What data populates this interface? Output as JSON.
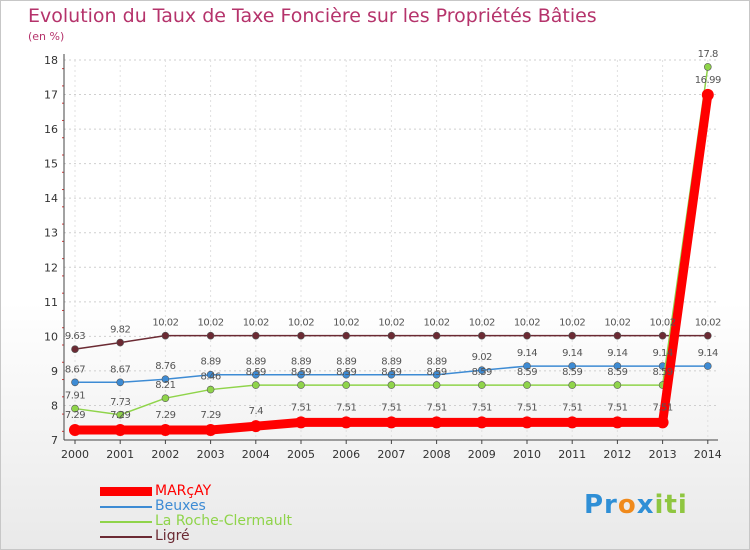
{
  "chart_data": {
    "type": "line",
    "title": "Evolution du Taux de Taxe Foncière sur les Propriétés Bâties",
    "ylabel": "(en %)",
    "xlabel": "",
    "x": [
      "2000",
      "2001",
      "2002",
      "2003",
      "2004",
      "2005",
      "2006",
      "2007",
      "2008",
      "2009",
      "2010",
      "2011",
      "2012",
      "2013",
      "2014"
    ],
    "ylim": [
      7,
      18
    ],
    "yticks": [
      "7",
      "8",
      "9",
      "10",
      "11",
      "12",
      "13",
      "14",
      "15",
      "16",
      "17",
      "18"
    ],
    "series": [
      {
        "name": "Ligré",
        "color": "#6b2a33",
        "values": [
          9.63,
          9.82,
          10.02,
          10.02,
          10.02,
          10.02,
          10.02,
          10.02,
          10.02,
          10.02,
          10.02,
          10.02,
          10.02,
          10.02,
          10.02
        ],
        "labels": [
          "9.63",
          "9.82",
          "10.02",
          "10.02",
          "10.02",
          "10.02",
          "10.02",
          "10.02",
          "10.02",
          "10.02",
          "10.02",
          "10.02",
          "10.02",
          "10.02",
          "10.02"
        ]
      },
      {
        "name": "Beuxes",
        "color": "#3d8bd4",
        "values": [
          8.67,
          8.67,
          8.76,
          8.89,
          8.89,
          8.89,
          8.89,
          8.89,
          8.89,
          9.02,
          9.14,
          9.14,
          9.14,
          9.14,
          9.14
        ],
        "labels": [
          "8.67",
          "8.67",
          "8.76",
          "8.89",
          "8.89",
          "8.89",
          "8.89",
          "8.89",
          "8.89",
          "9.02",
          "9.14",
          "9.14",
          "9.14",
          "9.14",
          "9.14"
        ]
      },
      {
        "name": "La Roche-Clermault",
        "color": "#8fd44a",
        "values": [
          7.91,
          7.73,
          8.21,
          8.46,
          8.59,
          8.59,
          8.59,
          8.59,
          8.59,
          8.59,
          8.59,
          8.59,
          8.59,
          8.59,
          17.8
        ],
        "labels": [
          "7.91",
          "7.73",
          "8.21",
          "8.46",
          "8.59",
          "8.59",
          "8.59",
          "8.59",
          "8.59",
          "8.59",
          "8.59",
          "8.59",
          "8.59",
          "8.59",
          "17.8"
        ]
      },
      {
        "name": "MARçAY",
        "color": "#ff0000",
        "values": [
          7.29,
          7.29,
          7.29,
          7.29,
          7.4,
          7.51,
          7.51,
          7.51,
          7.51,
          7.51,
          7.51,
          7.51,
          7.51,
          7.51,
          16.99
        ],
        "labels": [
          "7.29",
          "7.29",
          "7.29",
          "7.29",
          "7.4",
          "7.51",
          "7.51",
          "7.51",
          "7.51",
          "7.51",
          "7.51",
          "7.51",
          "7.51",
          "7.51",
          "16.99"
        ]
      }
    ],
    "legend": [
      {
        "name": "MARçAY",
        "color": "#ff0000"
      },
      {
        "name": "Beuxes",
        "color": "#3d8bd4"
      },
      {
        "name": "La Roche-Clermault",
        "color": "#8fd44a"
      },
      {
        "name": "Ligré",
        "color": "#6b2a33"
      }
    ]
  },
  "logo": {
    "parts": [
      "Pr",
      "o",
      "x",
      "iti"
    ],
    "colors": [
      "#2f8fd6",
      "#f08a1c",
      "#2f8fd6",
      "#8fc640"
    ]
  }
}
